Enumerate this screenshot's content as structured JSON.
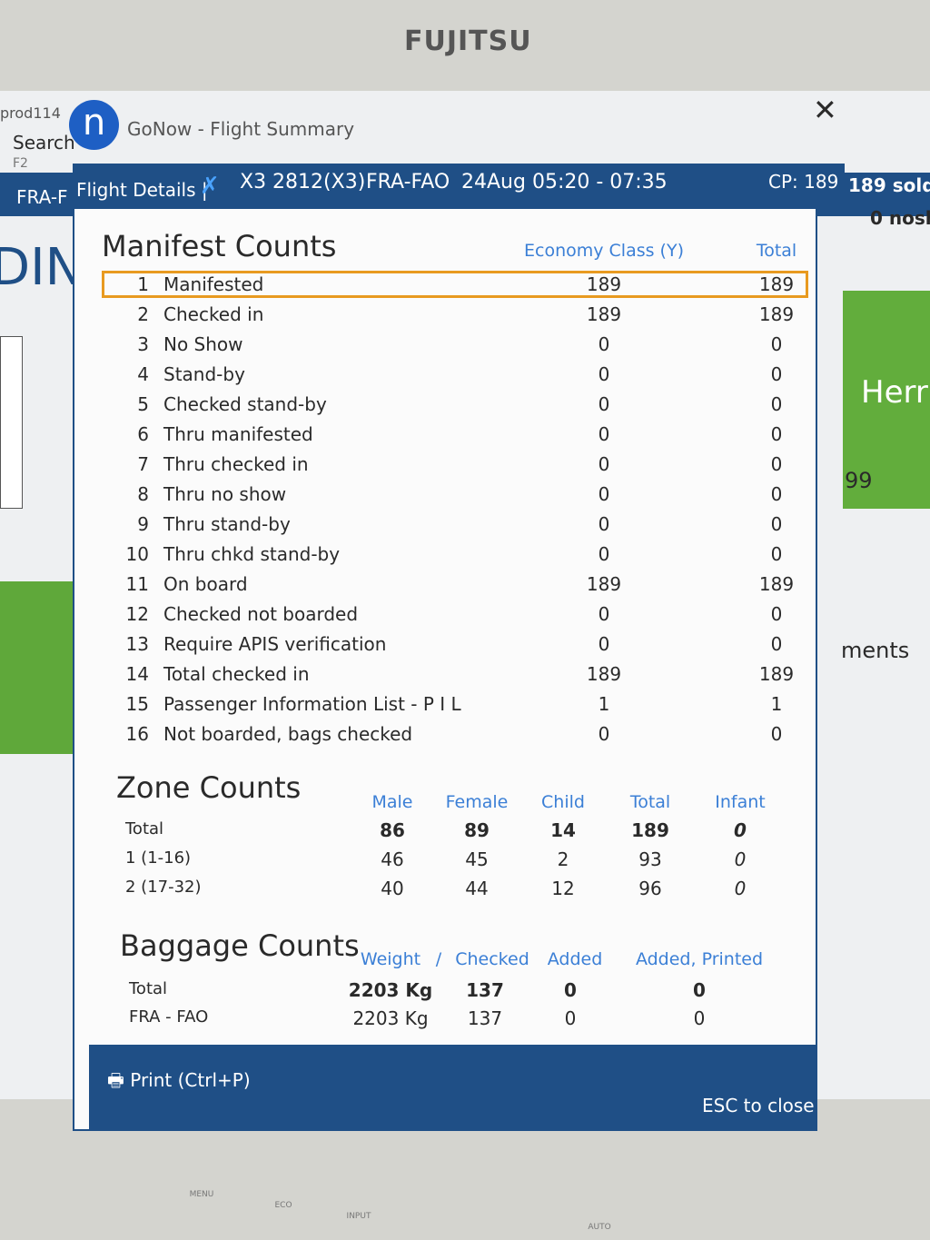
{
  "monitor": {
    "brand": "FUJITSU",
    "buttons": [
      "MENU",
      "ECO",
      "INPUT",
      "AUTO"
    ]
  },
  "background": {
    "left": [
      "prod114",
      "Search",
      "F2",
      "FRA-F",
      "DIN"
    ],
    "right": [
      "189 sold",
      "0 nosh",
      "Herr",
      "99",
      "ments"
    ]
  },
  "window": {
    "title": "GoNow - Flight Summary"
  },
  "header": {
    "label": "Flight Details |",
    "flight": "X3 2812(X3)",
    "route": "FRA-FAO",
    "date_time": "24Aug 05:20 - 07:35",
    "cp": "CP: 189"
  },
  "manifest": {
    "title": "Manifest Counts",
    "columns": [
      "Economy Class (Y)",
      "Total"
    ],
    "rows": [
      [
        1,
        "Manifested",
        189,
        189
      ],
      [
        2,
        "Checked in",
        189,
        189
      ],
      [
        3,
        "No Show",
        0,
        0
      ],
      [
        4,
        "Stand-by",
        0,
        0
      ],
      [
        5,
        "Checked stand-by",
        0,
        0
      ],
      [
        6,
        "Thru manifested",
        0,
        0
      ],
      [
        7,
        "Thru checked in",
        0,
        0
      ],
      [
        8,
        "Thru no show",
        0,
        0
      ],
      [
        9,
        "Thru stand-by",
        0,
        0
      ],
      [
        10,
        "Thru chkd stand-by",
        0,
        0
      ],
      [
        11,
        "On board",
        189,
        189
      ],
      [
        12,
        "Checked not boarded",
        0,
        0
      ],
      [
        13,
        "Require APIS verification",
        0,
        0
      ],
      [
        14,
        "Total checked in",
        189,
        189
      ],
      [
        15,
        "Passenger Information List - P I L",
        1,
        1
      ],
      [
        16,
        "Not boarded, bags checked",
        0,
        0
      ]
    ]
  },
  "zone": {
    "title": "Zone Counts",
    "columns": [
      "Male",
      "Female",
      "Child",
      "Total",
      "Infant"
    ],
    "rows": [
      [
        "Total",
        86,
        89,
        14,
        189,
        0
      ],
      [
        "1 (1-16)",
        46,
        45,
        2,
        93,
        0
      ],
      [
        "2 (17-32)",
        40,
        44,
        12,
        96,
        0
      ]
    ]
  },
  "baggage": {
    "title": "Baggage Counts",
    "columns": [
      "Weight",
      "/",
      "Checked",
      "Added",
      "Added, Printed"
    ],
    "rows": [
      [
        "Total",
        "2203 Kg",
        137,
        0,
        0
      ],
      [
        "FRA - FAO",
        "2203 Kg",
        137,
        0,
        0
      ]
    ]
  },
  "footer": {
    "print": "Print (Ctrl+P)",
    "close": "ESC to close"
  }
}
